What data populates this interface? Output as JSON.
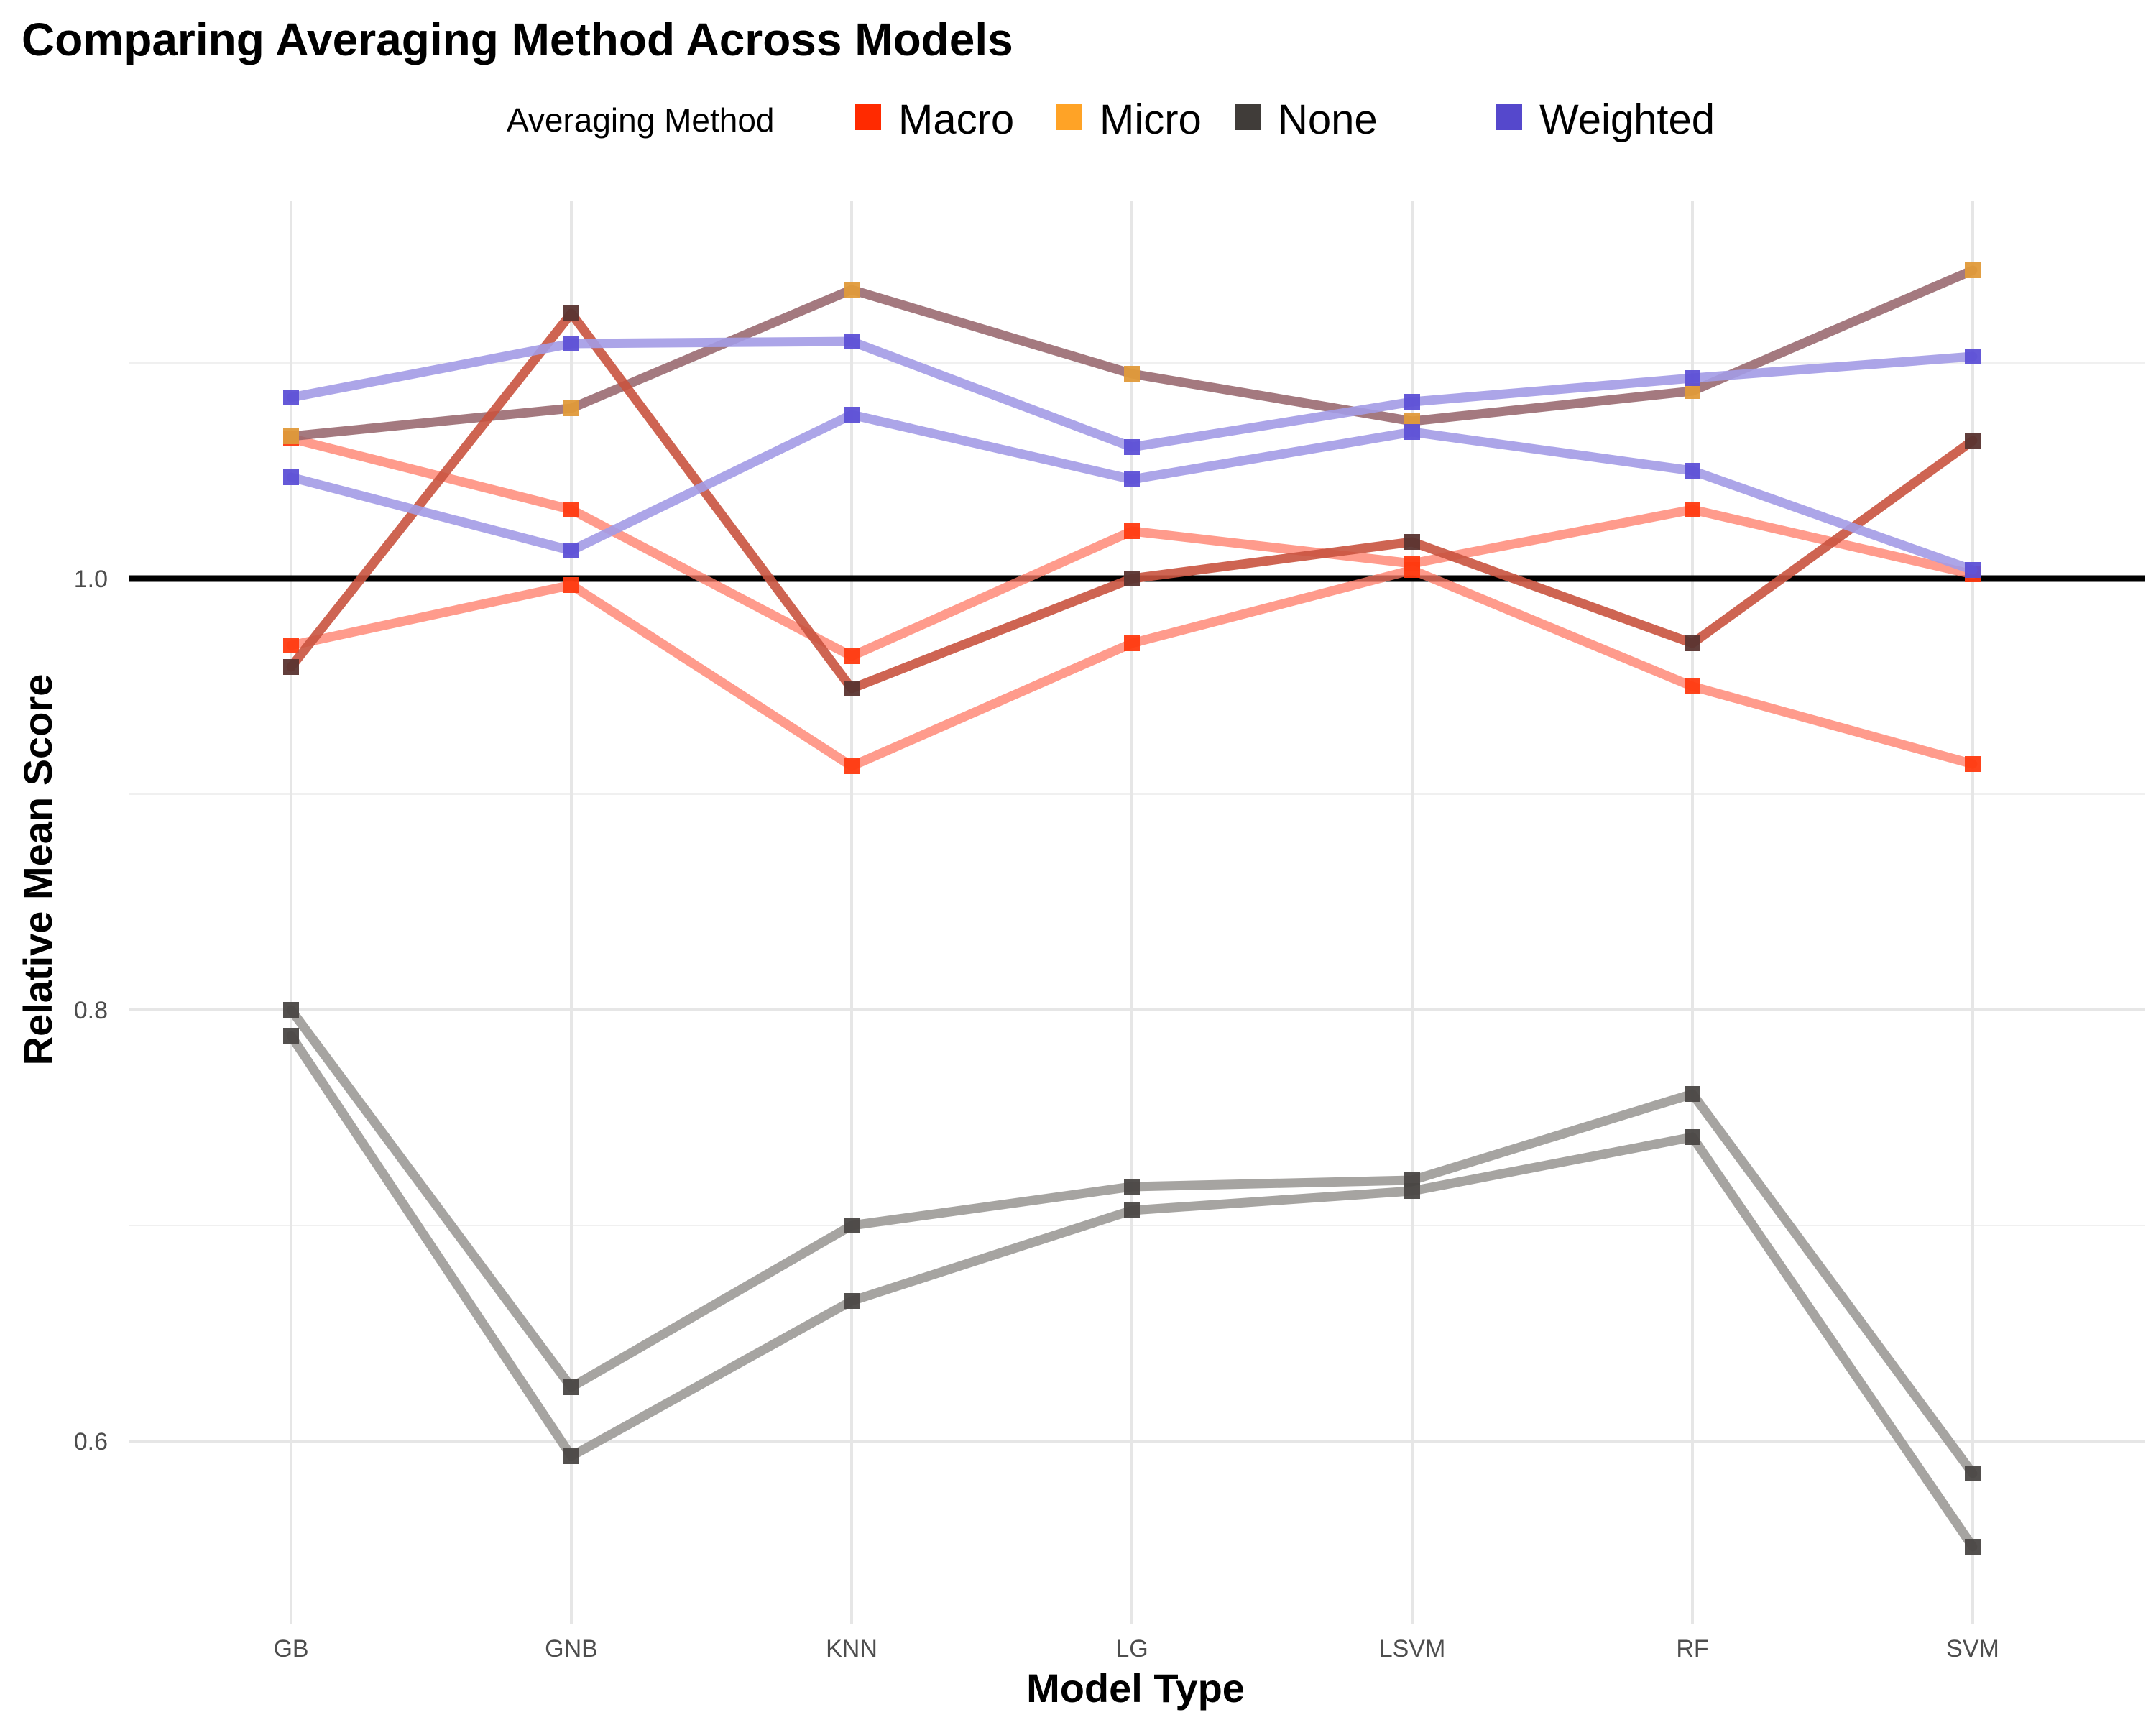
{
  "chart_data": {
    "type": "line",
    "title": "Comparing Averaging Method Across Models",
    "xlabel": "Model Type",
    "ylabel": "Relative Mean Score",
    "categories": [
      "GB",
      "GNB",
      "KNN",
      "LG",
      "LSVM",
      "RF",
      "SVM"
    ],
    "yticks": [
      0.6,
      0.8,
      1.0
    ],
    "ytick_labels": [
      "0.6",
      "0.8",
      "1.0"
    ],
    "ylim": [
      0.53,
      1.175
    ],
    "reference_line": 1.0,
    "grid": true,
    "legend": {
      "title": "Averaging Method",
      "position": "top",
      "entries": [
        {
          "label": "Macro",
          "color": "#ff2a00"
        },
        {
          "label": "Micro",
          "color": "#ffa326"
        },
        {
          "label": "None",
          "color": "#403c39"
        },
        {
          "label": "Weighted",
          "color": "#5548cc"
        }
      ]
    },
    "series": [
      {
        "method": "Macro",
        "line_color": "#ff7a66",
        "point_color": "#ff3a10",
        "alpha": 0.75,
        "values": [
          1.065,
          1.032,
          0.964,
          1.022,
          1.007,
          1.032,
          1.002
        ]
      },
      {
        "method": "Macro",
        "line_color": "#ff7a66",
        "point_color": "#ff3a10",
        "alpha": 0.75,
        "values": [
          0.969,
          0.997,
          0.913,
          0.97,
          1.004,
          0.95,
          0.914
        ]
      },
      {
        "method": "Micro",
        "line_color": "#946268",
        "point_color": "#e09a3a",
        "alpha": 0.85,
        "values": [
          1.066,
          1.079,
          1.134,
          1.095,
          1.073,
          1.087,
          1.143
        ]
      },
      {
        "method": "None",
        "line_color": "#c9533f",
        "point_color": "#5a3430",
        "alpha": 0.9,
        "values": [
          0.959,
          1.123,
          0.949,
          1.0,
          1.017,
          0.97,
          1.064
        ]
      },
      {
        "method": "None",
        "line_color": "#9c9a97",
        "point_color": "#4a4745",
        "alpha": 0.9,
        "values": [
          0.8,
          0.625,
          0.7,
          0.718,
          0.721,
          0.761,
          0.585
        ]
      },
      {
        "method": "None",
        "line_color": "#9c9a97",
        "point_color": "#4a4745",
        "alpha": 0.9,
        "values": [
          0.788,
          0.593,
          0.665,
          0.707,
          0.716,
          0.741,
          0.551
        ]
      },
      {
        "method": "Weighted",
        "line_color": "#a39be6",
        "point_color": "#5d50d6",
        "alpha": 0.9,
        "values": [
          1.084,
          1.109,
          1.11,
          1.061,
          1.082,
          1.093,
          1.103
        ]
      },
      {
        "method": "Weighted",
        "line_color": "#a39be6",
        "point_color": "#5d50d6",
        "alpha": 0.9,
        "values": [
          1.047,
          1.013,
          1.076,
          1.046,
          1.068,
          1.05,
          1.004
        ]
      }
    ]
  }
}
